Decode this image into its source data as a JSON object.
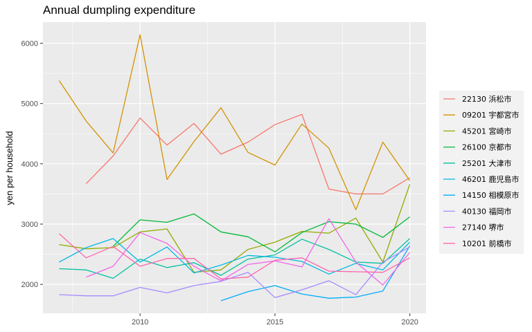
{
  "chart_data": {
    "type": "line",
    "title": "Annual dumpling expenditure",
    "xlabel": "",
    "ylabel": "yen per household",
    "xlim": [
      2006.4,
      2020.6
    ],
    "ylim": [
      1520,
      6350
    ],
    "x_ticks": [
      2010,
      2015,
      2020
    ],
    "y_ticks": [
      2000,
      3000,
      4000,
      5000,
      6000
    ],
    "grid": true,
    "legend_position": "right",
    "x": [
      2007,
      2008,
      2009,
      2010,
      2011,
      2012,
      2013,
      2014,
      2015,
      2016,
      2017,
      2018,
      2019,
      2020
    ],
    "series": [
      {
        "name": "22130 浜松市",
        "color": "#F8766D",
        "values": [
          null,
          3670,
          4130,
          4760,
          4310,
          4670,
          4160,
          4360,
          4650,
          4820,
          3580,
          3500,
          3500,
          3770
        ]
      },
      {
        "name": "09201 宇都宮市",
        "color": "#D39200",
        "values": [
          5380,
          4710,
          4180,
          6140,
          3740,
          4370,
          4930,
          4190,
          3980,
          4660,
          4260,
          3240,
          4360,
          3720
        ]
      },
      {
        "name": "45201 宮崎市",
        "color": "#93AA00",
        "values": [
          2660,
          2590,
          2610,
          2870,
          2920,
          2200,
          2240,
          2580,
          2700,
          2880,
          2850,
          3100,
          2370,
          3660
        ]
      },
      {
        "name": "26100 京都市",
        "color": "#00BA38",
        "values": [
          null,
          null,
          2630,
          3070,
          3030,
          3170,
          2870,
          2790,
          2540,
          2860,
          3040,
          3000,
          2780,
          3120
        ]
      },
      {
        "name": "25201 大津市",
        "color": "#00C19F",
        "values": [
          2260,
          2240,
          2100,
          2420,
          2280,
          2360,
          2150,
          2420,
          2490,
          2750,
          2580,
          2370,
          2350,
          2760
        ]
      },
      {
        "name": "46201 鹿児島市",
        "color": "#00B9E3",
        "values": [
          2370,
          2610,
          2760,
          2370,
          2620,
          2190,
          2320,
          2480,
          2450,
          2380,
          2170,
          2350,
          2240,
          2700
        ]
      },
      {
        "name": "14150 相模原市",
        "color": "#00ADFA",
        "values": [
          null,
          null,
          null,
          null,
          null,
          null,
          1730,
          1880,
          1980,
          1840,
          1770,
          1790,
          1890,
          2640
        ]
      },
      {
        "name": "40130 福岡市",
        "color": "#A58AFF",
        "values": [
          1830,
          1810,
          1810,
          1950,
          1860,
          1980,
          2050,
          2200,
          1780,
          1910,
          2060,
          1830,
          2370,
          2620
        ]
      },
      {
        "name": "27140 堺市",
        "color": "#F066EA",
        "values": [
          null,
          2120,
          2300,
          2860,
          2680,
          2300,
          2060,
          2330,
          2390,
          2290,
          3090,
          2370,
          1990,
          2530
        ]
      },
      {
        "name": "10201 前橋市",
        "color": "#FF65AC",
        "values": [
          2840,
          2440,
          2630,
          2300,
          2430,
          2430,
          2090,
          2120,
          2400,
          2440,
          2220,
          2210,
          2200,
          2440
        ]
      }
    ]
  }
}
